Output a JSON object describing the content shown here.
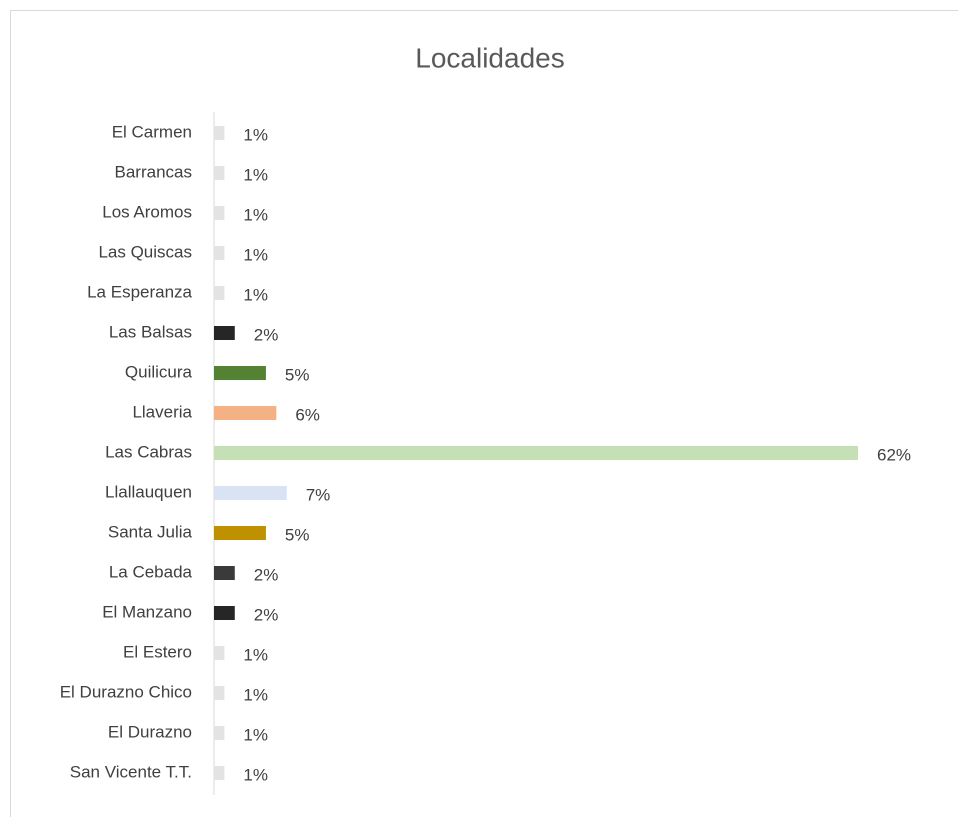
{
  "chart_data": {
    "type": "bar",
    "orientation": "horizontal",
    "title": "Localidades",
    "categories": [
      "El Carmen",
      "Barrancas",
      "Los Aromos",
      "Las Quiscas",
      "La Esperanza",
      "Las Balsas",
      "Quilicura",
      "Llaveria",
      "Las Cabras",
      "Llallauquen",
      "Santa Julia",
      "La Cebada",
      "El Manzano",
      "El Estero",
      "El Durazno Chico",
      "El Durazno",
      "San Vicente T.T."
    ],
    "values": [
      1,
      1,
      1,
      1,
      1,
      2,
      5,
      6,
      62,
      7,
      5,
      2,
      2,
      1,
      1,
      1,
      1
    ],
    "value_labels": [
      "1%",
      "1%",
      "1%",
      "1%",
      "1%",
      "2%",
      "5%",
      "6%",
      "62%",
      "7%",
      "5%",
      "2%",
      "2%",
      "1%",
      "1%",
      "1%",
      "1%"
    ],
    "colors": [
      "#e3e3e3",
      "#e3e3e3",
      "#e3e3e3",
      "#e3e3e3",
      "#e3e3e3",
      "#262626",
      "#548235",
      "#f4b183",
      "#c5e0b4",
      "#dae3f3",
      "#bf9000",
      "#3a3a3a",
      "#262626",
      "#e3e3e3",
      "#e3e3e3",
      "#e3e3e3",
      "#e3e3e3"
    ]
  }
}
